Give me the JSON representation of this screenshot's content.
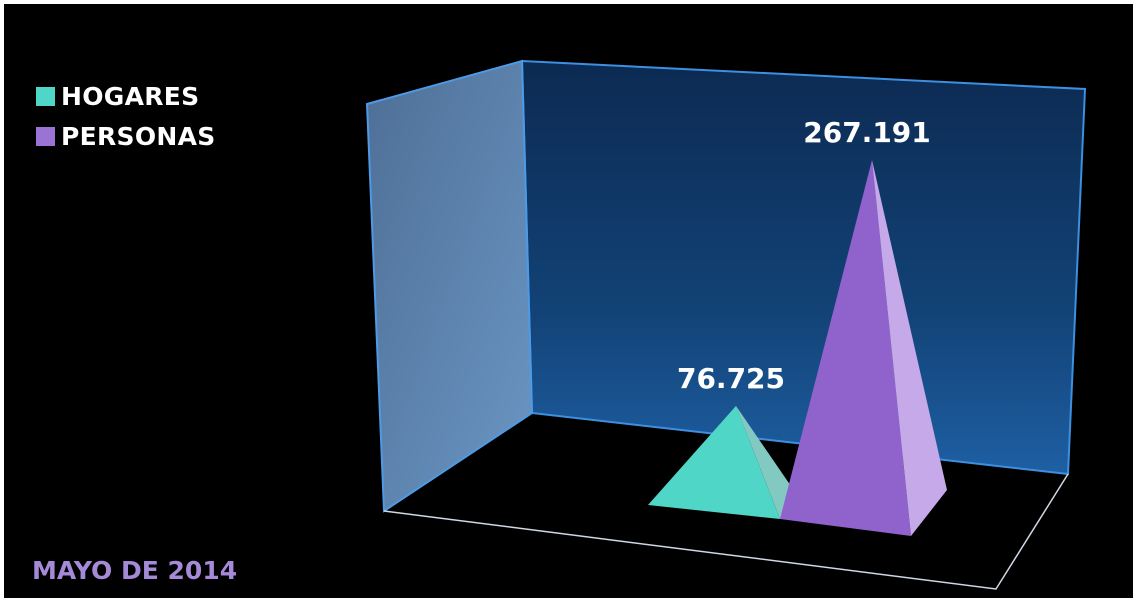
{
  "chart_data": {
    "type": "bar",
    "shape": "3d-pyramid",
    "categories": [
      "HOGARES",
      "PERSONAS"
    ],
    "values": [
      76725,
      267191
    ],
    "data_labels": [
      "76.725",
      "267.191"
    ],
    "legend": [
      {
        "label": "HOGARES",
        "color": "#4fd6c7"
      },
      {
        "label": "PERSONAS",
        "color": "#9b73d4"
      }
    ],
    "legend_position": "top-left",
    "grid": false,
    "title": "",
    "xlabel": "",
    "ylabel": ""
  },
  "footer": {
    "text": "MAYO DE 2014"
  },
  "colors": {
    "background": "#000000",
    "wall": "#1a4f86",
    "hogares": "#4fd6c7",
    "personas": "#9b73d4",
    "footer": "#a58ad8"
  }
}
